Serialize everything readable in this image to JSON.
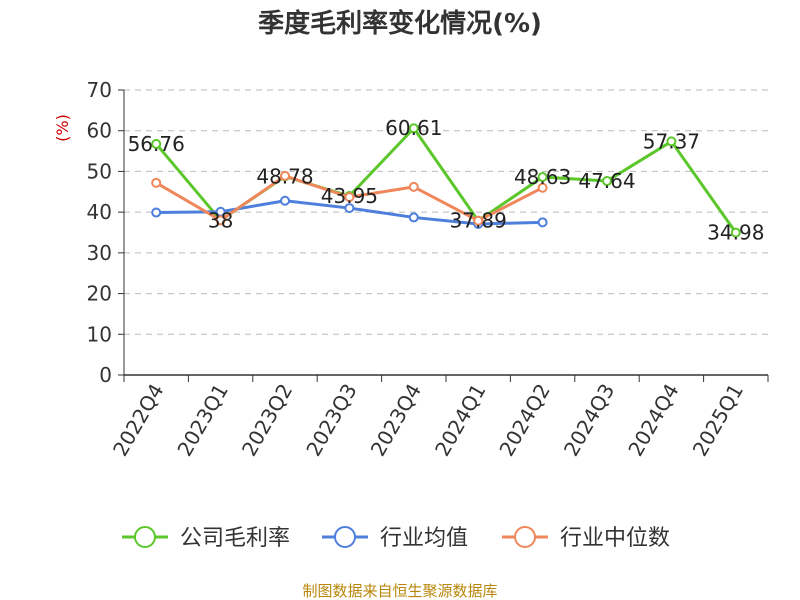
{
  "chart_data": {
    "type": "line",
    "title": "季度毛利率变化情况(%)",
    "ylabel": "(%)",
    "ylim": [
      0,
      70
    ],
    "yticks": [
      0,
      10,
      20,
      30,
      40,
      50,
      60,
      70
    ],
    "grid": true,
    "legend_position": "bottom",
    "categories": [
      "2022Q4",
      "2023Q1",
      "2023Q2",
      "2023Q3",
      "2023Q4",
      "2024Q1",
      "2024Q2",
      "2024Q3",
      "2024Q4",
      "2025Q1"
    ],
    "series": [
      {
        "name": "公司毛利率",
        "color": "#5cc72b",
        "values": [
          56.76,
          38,
          48.78,
          43.95,
          60.61,
          37.89,
          48.63,
          47.64,
          57.37,
          34.98
        ],
        "labels": [
          "56.76",
          "38",
          "48.78",
          "43.95",
          "60.61",
          "37.89",
          "48.63",
          "47.64",
          "57.37",
          "34.98"
        ]
      },
      {
        "name": "行业均值",
        "color": "#4f7fdc",
        "values": [
          39.9,
          40.1,
          42.8,
          41.0,
          38.7,
          37.1,
          37.5,
          null,
          null,
          null
        ]
      },
      {
        "name": "行业中位数",
        "color": "#f0875a",
        "values": [
          47.2,
          38.0,
          48.9,
          43.7,
          46.2,
          37.9,
          46.0,
          null,
          null,
          null
        ]
      }
    ]
  },
  "footer": {
    "source": "制图数据来自恒生聚源数据库"
  }
}
